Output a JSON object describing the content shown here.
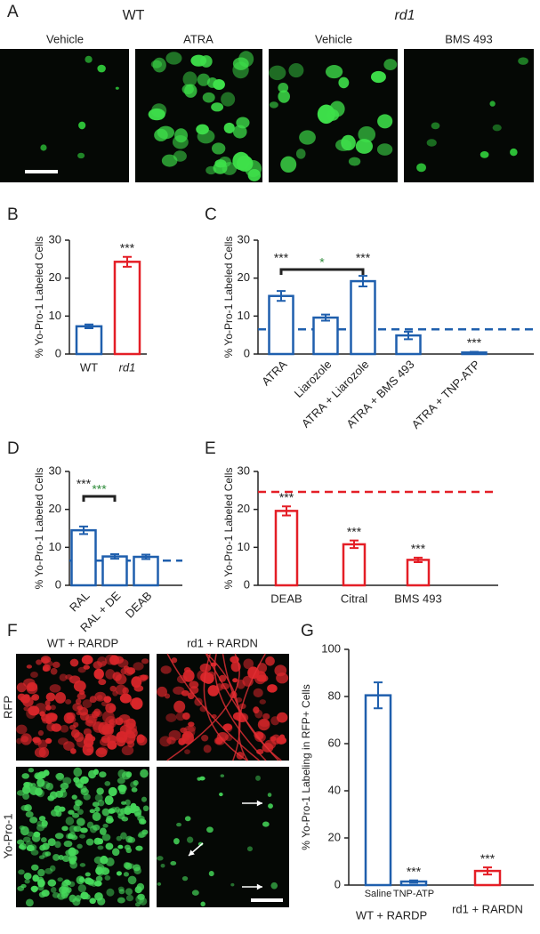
{
  "panel_a": {
    "label": "A",
    "groups": [
      "WT",
      "rd1"
    ],
    "images": [
      "Vehicle",
      "ATRA",
      "Vehicle",
      "BMS 493"
    ]
  },
  "panel_f": {
    "label": "F",
    "columns": [
      "WT + RARDP",
      "rd1 + RARDN"
    ],
    "rows": [
      "RFP",
      "Yo-Pro-1"
    ]
  },
  "chart_data": [
    {
      "type": "bar",
      "panel": "B",
      "ylabel": "% Yo-Pro-1 Labeled Cells",
      "categories": [
        "WT",
        "rd1"
      ],
      "values": [
        7.3,
        24.3
      ],
      "errors": [
        0.5,
        1.3
      ],
      "colors": [
        "#1f5fad",
        "#e41e26"
      ],
      "significance": [
        null,
        "***"
      ],
      "ylim": [
        0,
        30
      ],
      "yticks": [
        0,
        10,
        20,
        30
      ]
    },
    {
      "type": "bar",
      "panel": "C",
      "ylabel": "% Yo-Pro-1 Labeled Cells",
      "categories": [
        "ATRA",
        "Liarozole",
        "ATRA + Liarozole",
        "ATRA + BMS 493",
        "ATRA + TNP-ATP"
      ],
      "values": [
        15.3,
        9.6,
        19.2,
        4.9,
        0.4
      ],
      "errors": [
        1.3,
        0.8,
        1.4,
        1.0,
        0.2
      ],
      "colors": [
        "#1f5fad",
        "#1f5fad",
        "#1f5fad",
        "#1f5fad",
        "#1f5fad"
      ],
      "significance": [
        "***",
        null,
        "***",
        null,
        "***"
      ],
      "bracket": {
        "label": "*",
        "color": "#2e8b3a"
      },
      "reference_line": {
        "value": 6.5,
        "color": "#1f5fad"
      },
      "ylim": [
        0,
        30
      ],
      "yticks": [
        0,
        10,
        20,
        30
      ]
    },
    {
      "type": "bar",
      "panel": "D",
      "ylabel": "% Yo-Pro-1 Labeled Cells",
      "categories": [
        "RAL",
        "RAL + DE",
        "DEAB"
      ],
      "values": [
        14.5,
        7.6,
        7.5
      ],
      "errors": [
        1.0,
        0.6,
        0.6
      ],
      "colors": [
        "#1f5fad",
        "#1f5fad",
        "#1f5fad"
      ],
      "significance": [
        "***",
        null,
        null
      ],
      "bracket": {
        "label": "***",
        "color": "#2e8b3a"
      },
      "reference_line": {
        "value": 6.5,
        "color": "#1f5fad"
      },
      "ylim": [
        0,
        30
      ],
      "yticks": [
        0,
        10,
        20,
        30
      ]
    },
    {
      "type": "bar",
      "panel": "E",
      "ylabel": "% Yo-Pro-1 Labeled Cells",
      "categories": [
        "DEAB",
        "Citral",
        "BMS 493"
      ],
      "values": [
        19.6,
        10.8,
        6.7
      ],
      "errors": [
        1.2,
        1.0,
        0.6
      ],
      "colors": [
        "#e41e26",
        "#e41e26",
        "#e41e26"
      ],
      "significance": [
        "***",
        "***",
        "***"
      ],
      "reference_line": {
        "value": 24.6,
        "color": "#e41e26"
      },
      "ylim": [
        0,
        30
      ],
      "yticks": [
        0,
        10,
        20,
        30
      ]
    },
    {
      "type": "bar",
      "panel": "G",
      "ylabel": "% Yo-Pro-1 Labeling in RFP+ Cells",
      "categories": [
        "Saline",
        "TNP-ATP",
        "rd1 + RARDN"
      ],
      "group_label": "WT + RARDP",
      "values": [
        80.5,
        1.5,
        6.0
      ],
      "errors": [
        5.5,
        0.5,
        1.5
      ],
      "colors": [
        "#1f5fad",
        "#1f5fad",
        "#e41e26"
      ],
      "significance": [
        null,
        "***",
        "***"
      ],
      "ylim": [
        0,
        100
      ],
      "yticks": [
        0,
        20,
        40,
        60,
        80,
        100
      ]
    }
  ]
}
